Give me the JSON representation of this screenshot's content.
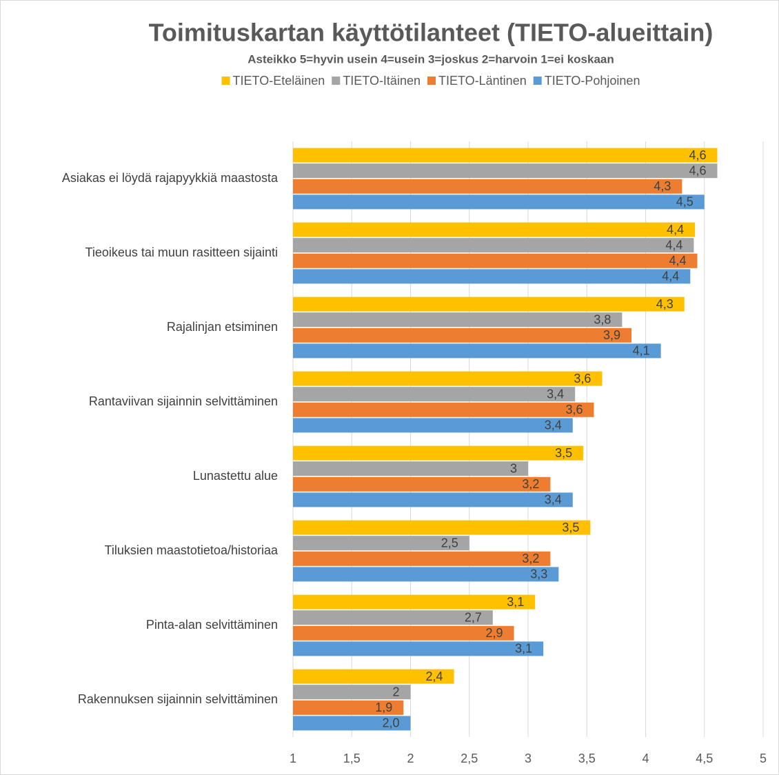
{
  "chart_data": {
    "type": "hbar",
    "title": "Toimituskartan käyttötilanteet (TIETO-alueittain)",
    "subtitle": "Asteikko 5=hyvin usein 4=usein 3=joskus 2=harvoin 1=ei koskaan",
    "legend": "top",
    "grid": true,
    "categories": [
      "Asiakas ei löydä rajapyykkiä maastosta",
      "Tieoikeus tai muun rasitteen sijainti",
      "Rajalinjan etsiminen",
      "Rantaviivan sijainnin selvittäminen",
      "Lunastettu alue",
      "Tiluksien maastotietoa/historiaa",
      "Pinta-alan selvittäminen",
      "Rakennuksen sijainnin selvittäminen"
    ],
    "series": [
      {
        "name": "TIETO-Eteläinen",
        "color": "#ffc000",
        "values": [
          4.61,
          4.42,
          4.33,
          3.63,
          3.47,
          3.53,
          3.06,
          2.37
        ],
        "value_labels": [
          "4,6",
          "4,4",
          "4,3",
          "3,6",
          "3,5",
          "3,5",
          "3,1",
          "2,4"
        ]
      },
      {
        "name": "TIETO-Itäinen",
        "color": "#a5a5a5",
        "values": [
          4.61,
          4.41,
          3.8,
          3.4,
          3.0,
          2.5,
          2.7,
          2.0
        ],
        "value_labels": [
          "4,6",
          "4,4",
          "3,8",
          "3,4",
          "3",
          "2,5",
          "2,7",
          "2"
        ]
      },
      {
        "name": "TIETO-Läntinen",
        "color": "#ed7d31",
        "values": [
          4.31,
          4.44,
          3.88,
          3.56,
          3.19,
          3.19,
          2.88,
          1.94
        ],
        "value_labels": [
          "4,3",
          "4,4",
          "3,9",
          "3,6",
          "3,2",
          "3,2",
          "2,9",
          "1,9"
        ]
      },
      {
        "name": "TIETO-Pohjoinen",
        "color": "#5b9bd5",
        "values": [
          4.5,
          4.38,
          4.13,
          3.38,
          3.38,
          3.26,
          3.13,
          2.0
        ],
        "value_labels": [
          "4,5",
          "4,4",
          "4,1",
          "3,4",
          "3,4",
          "3,3",
          "3,1",
          "2,0"
        ]
      }
    ],
    "xlim": [
      1,
      5
    ],
    "xticks": [
      1,
      {
        "value": 1.5,
        "label": "1,5"
      },
      2,
      {
        "value": 2.5,
        "label": "2,5"
      },
      3,
      {
        "value": 3.5,
        "label": "3,5"
      },
      4,
      {
        "value": 4.5,
        "label": "4,5"
      },
      5
    ]
  }
}
